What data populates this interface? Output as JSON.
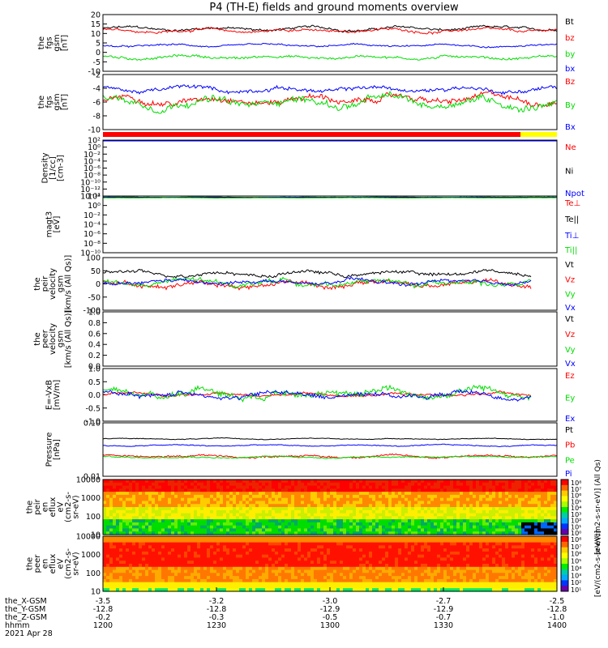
{
  "title": "P4 (TH-E) fields and ground moments overview",
  "colors": {
    "black": "#000000",
    "red": "#ff0000",
    "green": "#00dd00",
    "blue": "#0000ff",
    "yellow": "#ffff00"
  },
  "chart_data": [
    {
      "type": "line",
      "ylabel": [
        "the",
        "fgs",
        "gsm",
        "[nT]"
      ],
      "yticks": [
        "20",
        "15",
        "10",
        "5",
        "0",
        "-5",
        "-10"
      ],
      "ylim": [
        -10,
        20
      ],
      "series": [
        {
          "name": "Bt",
          "color": "#000000",
          "level": 12.5,
          "amp": 1.5
        },
        {
          "name": "bz",
          "color": "#ff0000",
          "level": 11.5,
          "amp": 1.5
        },
        {
          "name": "by",
          "color": "#00dd00",
          "level": -2.5,
          "amp": 1.5
        },
        {
          "name": "bx",
          "color": "#0000ff",
          "level": 3.5,
          "amp": 1.0
        }
      ]
    },
    {
      "type": "line",
      "ylabel": [
        "the",
        "fgs",
        "gsm",
        "[nT]"
      ],
      "yticks": [
        "-2",
        "-4",
        "-6",
        "-8",
        "-10"
      ],
      "ylim": [
        -10.5,
        -0.5
      ],
      "series": [
        {
          "name": "Bz",
          "color": "#ff0000",
          "level": -5.0,
          "amp": 1.2
        },
        {
          "name": "By",
          "color": "#00dd00",
          "level": -5.5,
          "amp": 1.5
        },
        {
          "name": "Bx",
          "color": "#0000ff",
          "level": -3.2,
          "amp": 0.8
        }
      ]
    },
    {
      "type": "line",
      "ylabel": [
        "Density",
        "[1/cc]",
        "[cm-3]"
      ],
      "yticks": [
        "10²",
        "10⁰",
        "10⁻²",
        "10⁻⁴",
        "10⁻⁶",
        "10⁻⁸",
        "10⁻¹⁰",
        "10⁻¹²",
        "10⁻¹⁴"
      ],
      "ylim": [
        -14,
        2
      ],
      "series": [
        {
          "name": "Ne",
          "color": "#ff0000",
          "level": 1.9,
          "amp": 0.05
        },
        {
          "name": "Ni",
          "color": "#000000",
          "level": 1.9,
          "amp": 0.05
        },
        {
          "name": "Npot",
          "color": "#0000ff",
          "level": 1.85,
          "amp": 0.05
        }
      ]
    },
    {
      "type": "line",
      "ylabel": [
        "magt3",
        "[eV]"
      ],
      "yticks": [
        "10²",
        "10⁰",
        "10⁻²",
        "10⁻⁴",
        "10⁻⁶",
        "10⁻⁸",
        "10⁻¹⁰"
      ],
      "ylim": [
        -10,
        2.5
      ],
      "series": [
        {
          "name": "Te⊥",
          "color": "#ff0000",
          "level": 2.2,
          "amp": 0.05
        },
        {
          "name": "Te||",
          "color": "#000000",
          "level": 2.25,
          "amp": 0.05
        },
        {
          "name": "Ti⊥",
          "color": "#0000ff",
          "level": 2.15,
          "amp": 0.05
        },
        {
          "name": "Ti||",
          "color": "#00dd00",
          "level": 2.1,
          "amp": 0.05
        }
      ]
    },
    {
      "type": "line",
      "ylabel": [
        "the",
        "peir",
        "velocity",
        "gsm",
        "[km/s (All Qs)]"
      ],
      "yticks": [
        "100",
        "50",
        "0",
        "-50",
        "-100"
      ],
      "ylim": [
        -100,
        100
      ],
      "series": [
        {
          "name": "Vt",
          "color": "#000000",
          "level": 40,
          "amp": 15
        },
        {
          "name": "Vz",
          "color": "#ff0000",
          "level": 0,
          "amp": 20
        },
        {
          "name": "Vy",
          "color": "#00dd00",
          "level": 5,
          "amp": 20
        },
        {
          "name": "Vx",
          "color": "#0000ff",
          "level": 5,
          "amp": 15
        }
      ]
    },
    {
      "type": "line",
      "ylabel": [
        "the",
        "peer",
        "velocity",
        "gsm",
        "[km/s (All Qs)]"
      ],
      "yticks": [
        "1.0",
        "0.8",
        "0.6",
        "0.4",
        "0.2",
        "0.0"
      ],
      "ylim": [
        0,
        1
      ],
      "series": [
        {
          "name": "Vt",
          "color": "#000000"
        },
        {
          "name": "Vz",
          "color": "#ff0000"
        },
        {
          "name": "Vy",
          "color": "#00dd00"
        },
        {
          "name": "Vx",
          "color": "#0000ff"
        }
      ]
    },
    {
      "type": "line",
      "ylabel": [
        "E=-VxB",
        "[mV/m]"
      ],
      "yticks": [
        "1.0",
        "0.5",
        "0.0",
        "-0.5",
        "-1.0"
      ],
      "ylim": [
        -1,
        1
      ],
      "series": [
        {
          "name": "Ez",
          "color": "#ff0000",
          "level": 0.02,
          "amp": 0.1
        },
        {
          "name": "Ey",
          "color": "#00dd00",
          "level": 0.1,
          "amp": 0.3
        },
        {
          "name": "Ex",
          "color": "#0000ff",
          "level": 0.0,
          "amp": 0.2
        }
      ]
    },
    {
      "type": "line",
      "ylabel": [
        "Pressure",
        "[nPa]"
      ],
      "yticks": [
        "0.10",
        "0.01"
      ],
      "ylim": [
        -2,
        0
      ],
      "series": [
        {
          "name": "Pt",
          "color": "#000000",
          "level": -0.6,
          "amp": 0.03
        },
        {
          "name": "Pb",
          "color": "#ff0000",
          "level": -1.25,
          "amp": 0.08
        },
        {
          "name": "Pe",
          "color": "#00dd00",
          "level": -1.28,
          "amp": 0.05
        },
        {
          "name": "Pi",
          "color": "#0000ff",
          "level": -0.85,
          "amp": 0.04
        }
      ]
    },
    {
      "type": "heatmap",
      "ylabel": [
        "the",
        "peir",
        "en",
        "eflux",
        "eV",
        "(cm2-s-",
        "sr-eV)"
      ],
      "yticks": [
        "10000",
        "1000",
        "100",
        "10"
      ],
      "colorbar_label": "[eV/(cm2-s-sr-eV)] (All Qs)",
      "colorbar_ticks": [
        "10⁸",
        "10⁷",
        "10⁶",
        "10⁵",
        "10⁴",
        "10³",
        "10²",
        "10¹",
        "10⁰"
      ]
    },
    {
      "type": "heatmap",
      "ylabel": [
        "the",
        "peer",
        "en",
        "eflux",
        "eV",
        "(cm2-s-",
        "sr-eV)"
      ],
      "yticks": [
        "10000",
        "1000",
        "100",
        "10"
      ],
      "colorbar_label": "[eV/(cm2-s-sr-eV)]",
      "colorbar_ticks": [
        "10⁸",
        "10⁷",
        "10⁶",
        "10⁵",
        "10⁴",
        "10³",
        "10²",
        "10¹"
      ]
    }
  ],
  "x_axis": {
    "rows": [
      {
        "label": "the_X-GSM",
        "values": [
          "-3.5",
          "-3.2",
          "-3.0",
          "-2.7",
          "-2.5"
        ]
      },
      {
        "label": "the_Y-GSM",
        "values": [
          "-12.8",
          "-12.8",
          "-12.9",
          "-12.9",
          "-12.8"
        ]
      },
      {
        "label": "the_Z-GSM",
        "values": [
          "-0.2",
          "-0.3",
          "-0.5",
          "-0.7",
          "-1.0"
        ]
      },
      {
        "label": "hhmm",
        "values": [
          "1200",
          "1230",
          "1300",
          "1330",
          "1400"
        ]
      }
    ],
    "date": "2021 Apr 28"
  }
}
